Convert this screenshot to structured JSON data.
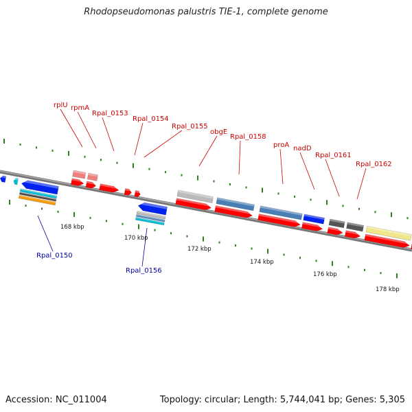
{
  "title": "Rhodopseudomonas palustris TIE-1, complete genome",
  "accession_text": "Accession: NC_011004",
  "summary_text": "Topology: circular; Length: 5,744,041 bp; Genes: 5,305",
  "colors": {
    "backbone": "#888888",
    "tick": "#2e7d1e",
    "label_red": "#cc0000",
    "label_blue": "#0000aa",
    "gene_red": "#ff0000",
    "gene_blue": "#0022ee",
    "gene_steel": "#4a7fb5",
    "gene_pink": "#f08080",
    "gene_grey": "#bbbbbb",
    "gene_dark": "#555555",
    "gene_yellow": "#f0e68c",
    "gene_olive": "#6b8e23",
    "gene_cyan": "#00bcd4",
    "gene_orange": "#f39c12"
  },
  "scale_labels": [
    "168 kbp",
    "170 kbp",
    "172 kbp",
    "174 kbp",
    "176 kbp",
    "178 kbp"
  ],
  "gene_labels_top": [
    "rplU",
    "rpmA",
    "Rpal_0153",
    "Rpal_0154",
    "Rpal_0155",
    "obgE",
    "Rpal_0158",
    "proA",
    "nadD",
    "Rpal_0161",
    "Rpal_0162"
  ],
  "gene_labels_bottom": [
    "Rpal_0150",
    "Rpal_0156"
  ]
}
